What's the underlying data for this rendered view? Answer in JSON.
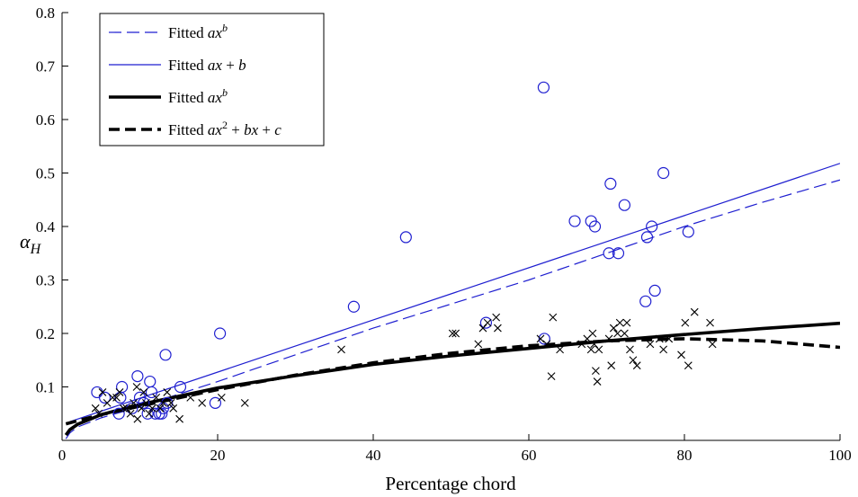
{
  "chart_data": {
    "type": "scatter",
    "title": "",
    "xlabel": "Percentage chord",
    "ylabel_main": "α",
    "ylabel_sub": "H",
    "xlim": [
      0,
      100
    ],
    "ylim": [
      0,
      0.8
    ],
    "xticks": [
      0,
      20,
      40,
      60,
      80,
      100
    ],
    "yticks": [
      0.1,
      0.2,
      0.3,
      0.4,
      0.5,
      0.6,
      0.7,
      0.8
    ],
    "grid": false,
    "legend_placement": "top-left",
    "legend": [
      {
        "pre": "Fitted ",
        "parts": [
          [
            "ax",
            "i"
          ],
          [
            "b",
            "isup"
          ]
        ]
      },
      {
        "pre": "Fitted ",
        "parts": [
          [
            "ax",
            "i"
          ],
          [
            " + ",
            "n"
          ],
          [
            "b",
            "i"
          ]
        ]
      },
      {
        "pre": "Fitted ",
        "parts": [
          [
            "ax",
            "i"
          ],
          [
            "b",
            "isup"
          ]
        ]
      },
      {
        "pre": "Fitted ",
        "parts": [
          [
            "ax",
            "i"
          ],
          [
            "2",
            "sup"
          ],
          [
            " + ",
            "n"
          ],
          [
            "bx",
            "i"
          ],
          [
            " + ",
            "n"
          ],
          [
            "c",
            "i"
          ]
        ]
      }
    ],
    "colors": {
      "blue": "#1f1fd0",
      "black": "#000000"
    },
    "series": [
      {
        "kind": "scatter",
        "marker": "circle",
        "color": "#1f1fd0",
        "points": [
          [
            4.5,
            0.09
          ],
          [
            5.5,
            0.08
          ],
          [
            7.3,
            0.05
          ],
          [
            7.5,
            0.08
          ],
          [
            7.7,
            0.1
          ],
          [
            9.0,
            0.06
          ],
          [
            9.7,
            0.12
          ],
          [
            10.0,
            0.08
          ],
          [
            10.5,
            0.07
          ],
          [
            11.0,
            0.05
          ],
          [
            11.3,
            0.11
          ],
          [
            11.5,
            0.09
          ],
          [
            12.0,
            0.05
          ],
          [
            12.5,
            0.05
          ],
          [
            12.8,
            0.05
          ],
          [
            13.0,
            0.06
          ],
          [
            13.3,
            0.16
          ],
          [
            13.5,
            0.07
          ],
          [
            15.2,
            0.1
          ],
          [
            19.7,
            0.07
          ],
          [
            20.3,
            0.2
          ],
          [
            37.5,
            0.25
          ],
          [
            44.2,
            0.38
          ],
          [
            54.5,
            0.22
          ],
          [
            62.0,
            0.19
          ],
          [
            61.9,
            0.66
          ],
          [
            65.9,
            0.41
          ],
          [
            68.0,
            0.41
          ],
          [
            68.5,
            0.4
          ],
          [
            70.3,
            0.35
          ],
          [
            70.5,
            0.48
          ],
          [
            71.5,
            0.35
          ],
          [
            72.3,
            0.44
          ],
          [
            75.0,
            0.26
          ],
          [
            75.2,
            0.38
          ],
          [
            75.8,
            0.4
          ],
          [
            76.2,
            0.28
          ],
          [
            77.3,
            0.5
          ],
          [
            80.5,
            0.39
          ]
        ]
      },
      {
        "kind": "scatter",
        "marker": "x",
        "color": "#000000",
        "points": [
          [
            4.3,
            0.06
          ],
          [
            4.7,
            0.05
          ],
          [
            5.2,
            0.09
          ],
          [
            5.8,
            0.07
          ],
          [
            6.5,
            0.08
          ],
          [
            7.0,
            0.08
          ],
          [
            7.4,
            0.09
          ],
          [
            7.9,
            0.06
          ],
          [
            8.3,
            0.06
          ],
          [
            8.8,
            0.05
          ],
          [
            9.2,
            0.07
          ],
          [
            9.6,
            0.1
          ],
          [
            9.7,
            0.04
          ],
          [
            10.2,
            0.06
          ],
          [
            10.5,
            0.09
          ],
          [
            10.8,
            0.07
          ],
          [
            11.2,
            0.05
          ],
          [
            11.6,
            0.06
          ],
          [
            12.1,
            0.08
          ],
          [
            12.6,
            0.06
          ],
          [
            13.0,
            0.07
          ],
          [
            13.5,
            0.09
          ],
          [
            14.0,
            0.07
          ],
          [
            14.3,
            0.06
          ],
          [
            15.1,
            0.04
          ],
          [
            16.5,
            0.08
          ],
          [
            18.0,
            0.07
          ],
          [
            20.5,
            0.08
          ],
          [
            23.5,
            0.07
          ],
          [
            35.9,
            0.17
          ],
          [
            50.2,
            0.2
          ],
          [
            50.6,
            0.2
          ],
          [
            53.5,
            0.18
          ],
          [
            54.1,
            0.21
          ],
          [
            54.7,
            0.22
          ],
          [
            55.8,
            0.23
          ],
          [
            56.0,
            0.21
          ],
          [
            61.5,
            0.19
          ],
          [
            62.3,
            0.18
          ],
          [
            62.9,
            0.12
          ],
          [
            63.1,
            0.23
          ],
          [
            64.0,
            0.17
          ],
          [
            66.8,
            0.18
          ],
          [
            67.5,
            0.19
          ],
          [
            68.0,
            0.17
          ],
          [
            68.2,
            0.2
          ],
          [
            68.4,
            0.18
          ],
          [
            68.6,
            0.13
          ],
          [
            68.8,
            0.11
          ],
          [
            69.0,
            0.17
          ],
          [
            70.3,
            0.19
          ],
          [
            70.6,
            0.14
          ],
          [
            70.9,
            0.21
          ],
          [
            71.4,
            0.2
          ],
          [
            71.7,
            0.22
          ],
          [
            72.3,
            0.2
          ],
          [
            72.6,
            0.22
          ],
          [
            73.0,
            0.17
          ],
          [
            73.4,
            0.15
          ],
          [
            73.9,
            0.14
          ],
          [
            75.6,
            0.18
          ],
          [
            76.8,
            0.19
          ],
          [
            77.3,
            0.17
          ],
          [
            78.0,
            0.19
          ],
          [
            79.6,
            0.16
          ],
          [
            80.1,
            0.22
          ],
          [
            80.5,
            0.14
          ],
          [
            81.3,
            0.24
          ],
          [
            83.3,
            0.22
          ],
          [
            83.6,
            0.18
          ]
        ]
      },
      {
        "kind": "line",
        "style": "dashed-thin",
        "color": "#1f1fd0",
        "points": [
          [
            0.5,
            0.003
          ],
          [
            1,
            0.014
          ],
          [
            2,
            0.025
          ],
          [
            5,
            0.042
          ],
          [
            10,
            0.063
          ],
          [
            20,
            0.11
          ],
          [
            30,
            0.16
          ],
          [
            40,
            0.21
          ],
          [
            50,
            0.255
          ],
          [
            60,
            0.3
          ],
          [
            70,
            0.35
          ],
          [
            80,
            0.4
          ],
          [
            90,
            0.445
          ],
          [
            100,
            0.487
          ]
        ]
      },
      {
        "kind": "line",
        "style": "solid-thin",
        "color": "#1f1fd0",
        "points": [
          [
            1,
            0.035
          ],
          [
            100,
            0.518
          ]
        ]
      },
      {
        "kind": "line",
        "style": "solid-thick",
        "color": "#000000",
        "points": [
          [
            0.5,
            0.01
          ],
          [
            1,
            0.02
          ],
          [
            2,
            0.03
          ],
          [
            5,
            0.048
          ],
          [
            10,
            0.067
          ],
          [
            20,
            0.098
          ],
          [
            30,
            0.121
          ],
          [
            40,
            0.142
          ],
          [
            50,
            0.158
          ],
          [
            60,
            0.172
          ],
          [
            70,
            0.186
          ],
          [
            80,
            0.198
          ],
          [
            90,
            0.209
          ],
          [
            100,
            0.219
          ]
        ]
      },
      {
        "kind": "line",
        "style": "dashed-thick",
        "color": "#000000",
        "points": [
          [
            0.5,
            0.031
          ],
          [
            5,
            0.048
          ],
          [
            10,
            0.064
          ],
          [
            20,
            0.095
          ],
          [
            30,
            0.122
          ],
          [
            40,
            0.145
          ],
          [
            50,
            0.163
          ],
          [
            60,
            0.177
          ],
          [
            70,
            0.186
          ],
          [
            80,
            0.19
          ],
          [
            90,
            0.186
          ],
          [
            100,
            0.174
          ]
        ]
      }
    ]
  }
}
